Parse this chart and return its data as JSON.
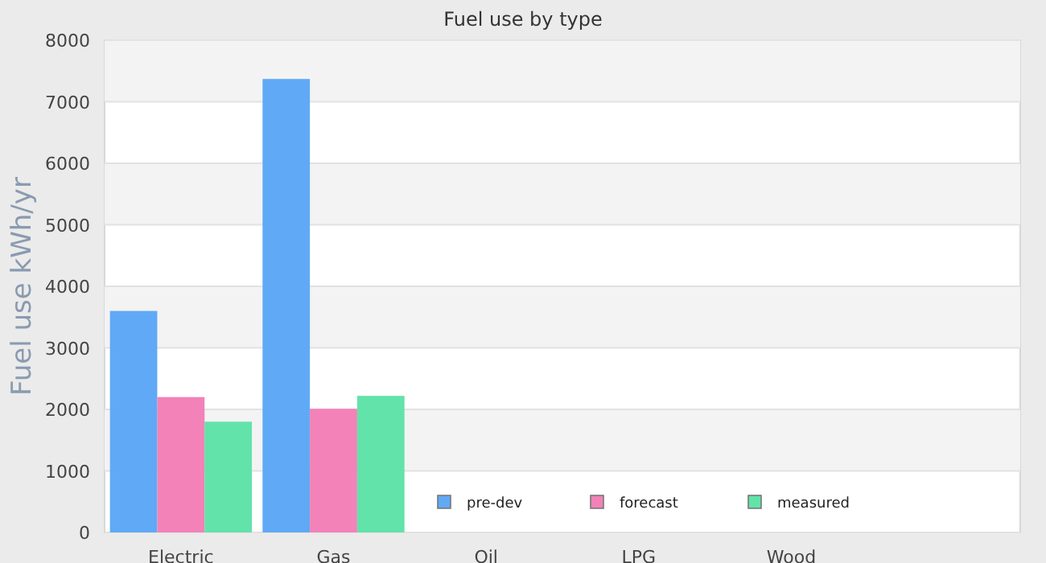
{
  "chart_data": {
    "type": "bar",
    "title": "Fuel use by type",
    "ylabel": "Fuel use  kWh/yr",
    "categories": [
      "Electric",
      "Gas",
      "Oil",
      "LPG",
      "Wood",
      null
    ],
    "series": [
      {
        "name": "pre-dev",
        "color": "#60a9f6",
        "values": [
          3600,
          7370,
          null,
          null,
          null,
          null
        ]
      },
      {
        "name": "forecast",
        "color": "#f282b8",
        "values": [
          2200,
          2010,
          null,
          null,
          null,
          null
        ]
      },
      {
        "name": "measured",
        "color": "#62e3a9",
        "values": [
          1800,
          2220,
          null,
          null,
          null,
          null
        ]
      }
    ],
    "ylim": [
      0,
      8000
    ],
    "yticks": [
      0,
      1000,
      2000,
      3000,
      4000,
      5000,
      6000,
      7000,
      8000
    ],
    "grid": true,
    "legend": "bottom"
  }
}
